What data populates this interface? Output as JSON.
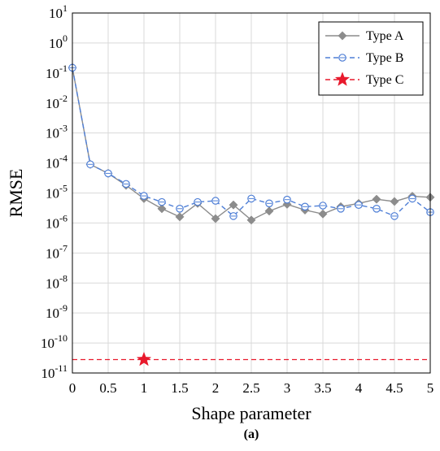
{
  "chart_data": {
    "type": "line",
    "xlabel": "Shape parameter",
    "ylabel": "RMSE",
    "caption": "(a)",
    "xlim": [
      0,
      5
    ],
    "ylim_exp": [
      -11,
      1
    ],
    "y_scale": "log",
    "grid": true,
    "legend_position": "top-right",
    "x_ticks": [
      "0",
      "0.5",
      "1",
      "1.5",
      "2",
      "2.5",
      "3",
      "3.5",
      "4",
      "4.5",
      "5"
    ],
    "x_tick_values": [
      0,
      0.5,
      1,
      1.5,
      2,
      2.5,
      3,
      3.5,
      4,
      4.5,
      5
    ],
    "y_ticks": [
      {
        "base": "10",
        "exp": "1",
        "value_exp": 1
      },
      {
        "base": "10",
        "exp": "0",
        "value_exp": 0
      },
      {
        "base": "10",
        "exp": "-1",
        "value_exp": -1
      },
      {
        "base": "10",
        "exp": "-2",
        "value_exp": -2
      },
      {
        "base": "10",
        "exp": "-3",
        "value_exp": -3
      },
      {
        "base": "10",
        "exp": "-4",
        "value_exp": -4
      },
      {
        "base": "10",
        "exp": "-5",
        "value_exp": -5
      },
      {
        "base": "10",
        "exp": "-6",
        "value_exp": -6
      },
      {
        "base": "10",
        "exp": "-7",
        "value_exp": -7
      },
      {
        "base": "10",
        "exp": "-8",
        "value_exp": -8
      },
      {
        "base": "10",
        "exp": "-9",
        "value_exp": -9
      },
      {
        "base": "10",
        "exp": "-10",
        "value_exp": -10
      },
      {
        "base": "10",
        "exp": "-11",
        "value_exp": -11
      }
    ],
    "series": [
      {
        "name": "Type A",
        "color": "#8c8c8c",
        "line": "solid",
        "marker": "diamond",
        "x": [
          0,
          0.25,
          0.5,
          0.75,
          1,
          1.25,
          1.5,
          1.75,
          2,
          2.25,
          2.5,
          2.75,
          3,
          3.25,
          3.5,
          3.75,
          4,
          4.25,
          4.5,
          4.75,
          5
        ],
        "y": [
          0.15,
          9e-05,
          4.5e-05,
          1.8e-05,
          6.5e-06,
          3e-06,
          1.6e-06,
          4.5e-06,
          1.4e-06,
          4e-06,
          1.25e-06,
          2.5e-06,
          4.2e-06,
          2.7e-06,
          2e-06,
          3.5e-06,
          4.5e-06,
          6.2e-06,
          5.2e-06,
          7.8e-06,
          7.2e-06
        ]
      },
      {
        "name": "Type B",
        "color": "#4f7fd6",
        "line": "dashed",
        "marker": "circle",
        "x": [
          0,
          0.25,
          0.5,
          0.75,
          1,
          1.25,
          1.5,
          1.75,
          2,
          2.25,
          2.5,
          2.75,
          3,
          3.25,
          3.5,
          3.75,
          4,
          4.25,
          4.5,
          4.75,
          5
        ],
        "y": [
          0.15,
          9e-05,
          4.5e-05,
          2e-05,
          8e-06,
          5e-06,
          3e-06,
          5e-06,
          5.5e-06,
          1.7e-06,
          6.5e-06,
          4.5e-06,
          6e-06,
          3.5e-06,
          3.8e-06,
          3e-06,
          4e-06,
          3e-06,
          1.7e-06,
          6.5e-06,
          2.3e-06
        ]
      },
      {
        "name": "Type C",
        "color": "#e8192c",
        "line": "dashed",
        "marker": "star",
        "x": [
          1
        ],
        "y": [
          2.8e-11
        ],
        "reference_line_y": 2.8e-11
      }
    ]
  }
}
